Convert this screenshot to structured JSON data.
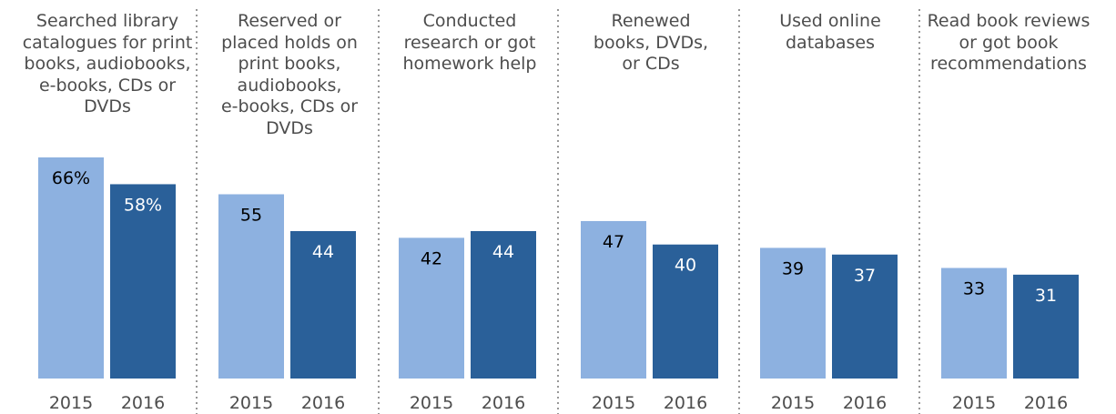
{
  "chart_data": {
    "type": "bar",
    "categories": [
      "Searched library catalogues for print books, audiobooks, e-books, CDs or DVDs",
      "Reserved or placed holds on print books, audiobooks, e-books, CDs or DVDs",
      "Conducted research or got homework help",
      "Renewed books, DVDs, or CDs",
      "Used online databases",
      "Read book reviews or got book recommendations"
    ],
    "category_lines": [
      [
        "Searched library",
        "catalogues for print",
        "books, audiobooks,",
        "e-books, CDs or",
        "DVDs"
      ],
      [
        "Reserved or",
        "placed holds on",
        "print books,",
        "audiobooks,",
        "e-books, CDs or",
        "DVDs"
      ],
      [
        "Conducted",
        "research or got",
        "homework help"
      ],
      [
        "Renewed",
        "books, DVDs,",
        "or CDs"
      ],
      [
        "Used online",
        "databases"
      ],
      [
        "Read book reviews",
        "or got book",
        "recommendations"
      ]
    ],
    "series": [
      {
        "name": "2015",
        "values": [
          66,
          55,
          42,
          47,
          39,
          33
        ],
        "labels": [
          "66%",
          "55",
          "42",
          "47",
          "39",
          "33"
        ]
      },
      {
        "name": "2016",
        "values": [
          58,
          44,
          44,
          40,
          37,
          31
        ],
        "labels": [
          "58%",
          "44",
          "44",
          "40",
          "37",
          "31"
        ]
      }
    ],
    "x_tick_labels": [
      "2015",
      "2016"
    ],
    "ylim": [
      0,
      66
    ],
    "colors": {
      "2015": "#8db1e0",
      "2016": "#2a6099",
      "label_on_light": "#000000",
      "label_on_dark": "#ffffff"
    },
    "grid": false,
    "legend": "none",
    "separators": "dotted-vertical"
  }
}
